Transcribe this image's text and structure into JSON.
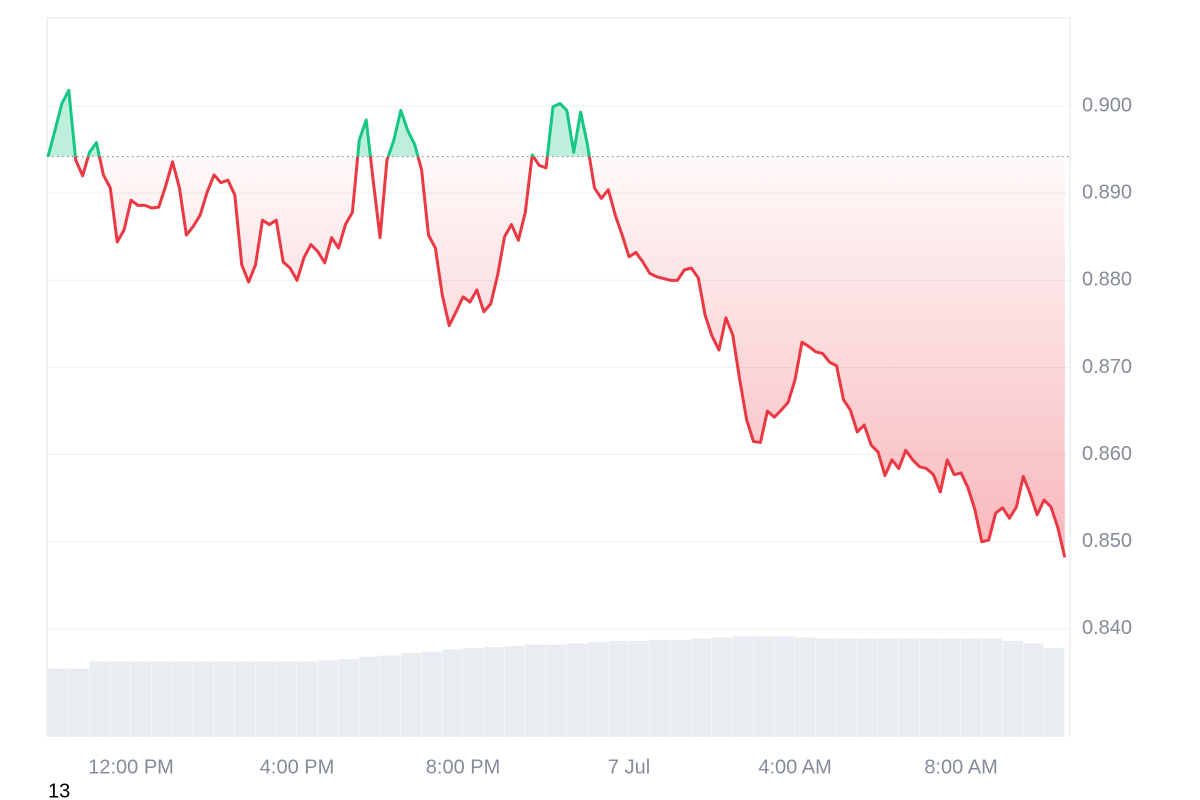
{
  "chart_data": {
    "type": "line",
    "footnote": "13",
    "x": [
      600,
      610,
      620,
      630,
      640,
      650,
      660,
      670,
      680,
      690,
      700,
      710,
      720,
      730,
      740,
      750,
      760,
      770,
      780,
      790,
      800,
      810,
      820,
      830,
      840,
      850,
      860,
      870,
      880,
      890,
      900,
      910,
      920,
      930,
      940,
      950,
      960,
      970,
      980,
      990,
      1000,
      1010,
      1020,
      1030,
      1040,
      1050,
      1060,
      1070,
      1080,
      1090,
      1100,
      1110,
      1120,
      1130,
      1140,
      1150,
      1160,
      1170,
      1180,
      1190,
      1200,
      1210,
      1220,
      1230,
      1240,
      1250,
      1260,
      1270,
      1280,
      1290,
      1300,
      1310,
      1320,
      1330,
      1340,
      1350,
      1360,
      1370,
      1380,
      1390,
      1400,
      1410,
      1420,
      1430,
      1440,
      1450,
      1460,
      1470,
      1480,
      1490,
      1500,
      1510,
      1520,
      1530,
      1540,
      1550,
      1560,
      1570,
      1580,
      1590,
      1600,
      1610,
      1620,
      1630,
      1640,
      1650,
      1660,
      1670,
      1680,
      1690,
      1700,
      1710,
      1720,
      1730,
      1740,
      1750,
      1760,
      1770,
      1780,
      1790,
      1800,
      1810,
      1820,
      1830,
      1840,
      1850,
      1860,
      1870,
      1880,
      1890,
      1900,
      1910,
      1920,
      1930,
      1940,
      1950,
      1960,
      1970,
      1980,
      1990,
      2000,
      2010,
      2020,
      2030,
      2040,
      2050,
      2060,
      2070
    ],
    "values": [
      0.8942,
      0.8972,
      0.9003,
      0.9018,
      0.8938,
      0.892,
      0.8947,
      0.8958,
      0.8921,
      0.8906,
      0.8844,
      0.8858,
      0.8892,
      0.8886,
      0.8886,
      0.8883,
      0.8884,
      0.8908,
      0.8936,
      0.8906,
      0.8852,
      0.8862,
      0.8875,
      0.8901,
      0.8921,
      0.8912,
      0.8915,
      0.8898,
      0.8818,
      0.8798,
      0.8818,
      0.8869,
      0.8864,
      0.8869,
      0.8821,
      0.8814,
      0.88,
      0.8826,
      0.8841,
      0.8833,
      0.882,
      0.8849,
      0.8837,
      0.8864,
      0.8878,
      0.8961,
      0.8984,
      0.8915,
      0.8849,
      0.8938,
      0.8961,
      0.8995,
      0.8972,
      0.8956,
      0.8927,
      0.8852,
      0.8837,
      0.8783,
      0.8748,
      0.8764,
      0.8781,
      0.8775,
      0.8789,
      0.8764,
      0.8773,
      0.8806,
      0.885,
      0.8864,
      0.8846,
      0.8878,
      0.8944,
      0.8932,
      0.8929,
      0.8999,
      0.9003,
      0.8995,
      0.8947,
      0.8993,
      0.8955,
      0.8906,
      0.8894,
      0.8904,
      0.8875,
      0.8852,
      0.8827,
      0.8832,
      0.8821,
      0.8808,
      0.8804,
      0.8802,
      0.88,
      0.88,
      0.8812,
      0.8814,
      0.8803,
      0.876,
      0.8736,
      0.872,
      0.8757,
      0.8737,
      0.8686,
      0.864,
      0.8615,
      0.8614,
      0.865,
      0.8643,
      0.8651,
      0.866,
      0.8686,
      0.8729,
      0.8724,
      0.8718,
      0.8716,
      0.8706,
      0.8702,
      0.8663,
      0.8651,
      0.8626,
      0.8634,
      0.8611,
      0.8603,
      0.8576,
      0.8594,
      0.8584,
      0.8605,
      0.8594,
      0.8586,
      0.8584,
      0.8577,
      0.8557,
      0.8594,
      0.8577,
      0.8579,
      0.8562,
      0.8537,
      0.85,
      0.8502,
      0.8533,
      0.8539,
      0.8527,
      0.854,
      0.8575,
      0.8555,
      0.8531,
      0.8548,
      0.854,
      0.8516,
      0.8482
    ],
    "baseline": 0.8942,
    "color_up": "#16c784",
    "color_down": "#ea3943",
    "volume": {
      "x": [
        600,
        630,
        660,
        690,
        720,
        750,
        780,
        810,
        840,
        870,
        900,
        930,
        960,
        990,
        1020,
        1050,
        1080,
        1110,
        1140,
        1170,
        1200,
        1230,
        1260,
        1290,
        1320,
        1350,
        1380,
        1410,
        1440,
        1470,
        1500,
        1530,
        1560,
        1590,
        1620,
        1650,
        1680,
        1710,
        1740,
        1770,
        1800,
        1830,
        1860,
        1890,
        1920,
        1950,
        1980,
        2010,
        2040
      ],
      "values": [
        57,
        57,
        63,
        63,
        63,
        63,
        63,
        63,
        63,
        63,
        63,
        63,
        63,
        64,
        65,
        67,
        68,
        70,
        71,
        73,
        74,
        75,
        76,
        77,
        77,
        78,
        79,
        80,
        80,
        81,
        81,
        82,
        83,
        84,
        84,
        84,
        83,
        82,
        82,
        82,
        82,
        82,
        82,
        82,
        82,
        82,
        80,
        78,
        74
      ],
      "width": 30,
      "ylim": [
        0,
        100
      ],
      "color": "#e9ecf0"
    },
    "xlim": [
      598.5,
      2077.5
    ],
    "ylim": [
      0.8276,
      0.9101
    ],
    "xticks": [
      {
        "value": 720,
        "label": "12:00 PM"
      },
      {
        "value": 960,
        "label": "4:00 PM"
      },
      {
        "value": 1200,
        "label": "8:00 PM"
      },
      {
        "value": 1440,
        "label": "7 Jul"
      },
      {
        "value": 1680,
        "label": "4:00 AM"
      },
      {
        "value": 1920,
        "label": "8:00 AM"
      }
    ],
    "yticks": [
      {
        "value": 0.84,
        "label": "0.840"
      },
      {
        "value": 0.85,
        "label": "0.850"
      },
      {
        "value": 0.86,
        "label": "0.860"
      },
      {
        "value": 0.87,
        "label": "0.870"
      },
      {
        "value": 0.88,
        "label": "0.880"
      },
      {
        "value": 0.89,
        "label": "0.890"
      },
      {
        "value": 0.9,
        "label": "0.900"
      }
    ],
    "grid": true
  }
}
